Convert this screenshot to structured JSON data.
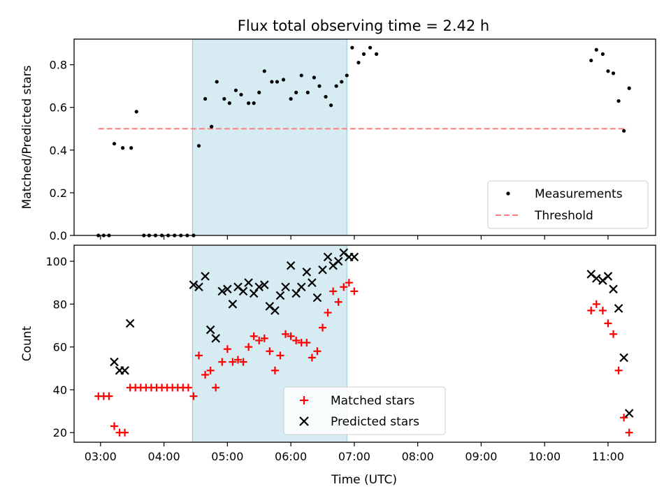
{
  "chart_data": [
    {
      "type": "scatter",
      "title": "Flux total observing time = 2.42 h",
      "xlabel": "",
      "ylabel": "Matched/Predicted stars",
      "xlim": [
        "02:35",
        "11:45"
      ],
      "ylim": [
        0,
        0.92
      ],
      "yticks": [
        0.0,
        0.2,
        0.4,
        0.6,
        0.8
      ],
      "ytick_labels": [
        "0.0",
        "0.2",
        "0.4",
        "0.6",
        "0.8"
      ],
      "xticks": [
        "03:00",
        "04:00",
        "05:00",
        "06:00",
        "07:00",
        "08:00",
        "09:00",
        "10:00",
        "11:00"
      ],
      "grid": false,
      "legend_position": "bottom-right",
      "highlight_span": {
        "start": "04:27",
        "end": "06:53",
        "color": "#add8e6"
      },
      "threshold": {
        "name": "Threshold",
        "value": 0.5,
        "x_start": "02:58",
        "x_end": "11:18",
        "color": "#ff7f7f"
      },
      "series": [
        {
          "name": "Measurements",
          "color": "#000000",
          "marker": "dot",
          "points": [
            [
              "02:58",
              0
            ],
            [
              "03:03",
              0
            ],
            [
              "03:08",
              0
            ],
            [
              "03:13",
              0.43
            ],
            [
              "03:21",
              0.41
            ],
            [
              "03:29",
              0.41
            ],
            [
              "03:34",
              0.58
            ],
            [
              "03:41",
              0
            ],
            [
              "03:46",
              0
            ],
            [
              "03:52",
              0
            ],
            [
              "03:58",
              0
            ],
            [
              "04:04",
              0
            ],
            [
              "04:10",
              0
            ],
            [
              "04:16",
              0
            ],
            [
              "04:22",
              0
            ],
            [
              "04:28",
              0
            ],
            [
              "04:33",
              0.42
            ],
            [
              "04:39",
              0.64
            ],
            [
              "04:45",
              0.51
            ],
            [
              "04:50",
              0.72
            ],
            [
              "04:57",
              0.64
            ],
            [
              "05:02",
              0.62
            ],
            [
              "05:08",
              0.68
            ],
            [
              "05:13",
              0.66
            ],
            [
              "05:20",
              0.62
            ],
            [
              "05:25",
              0.62
            ],
            [
              "05:30",
              0.67
            ],
            [
              "05:35",
              0.77
            ],
            [
              "05:42",
              0.72
            ],
            [
              "05:47",
              0.72
            ],
            [
              "05:53",
              0.73
            ],
            [
              "06:00",
              0.64
            ],
            [
              "06:05",
              0.67
            ],
            [
              "06:10",
              0.75
            ],
            [
              "06:16",
              0.67
            ],
            [
              "06:22",
              0.74
            ],
            [
              "06:27",
              0.7
            ],
            [
              "06:33",
              0.65
            ],
            [
              "06:38",
              0.61
            ],
            [
              "06:43",
              0.7
            ],
            [
              "06:48",
              0.72
            ],
            [
              "06:53",
              0.75
            ],
            [
              "06:58",
              0.88
            ],
            [
              "07:04",
              0.81
            ],
            [
              "07:09",
              0.85
            ],
            [
              "07:15",
              0.88
            ],
            [
              "07:21",
              0.85
            ],
            [
              "10:44",
              0.82
            ],
            [
              "10:49",
              0.87
            ],
            [
              "10:55",
              0.85
            ],
            [
              "11:00",
              0.77
            ],
            [
              "11:05",
              0.76
            ],
            [
              "11:10",
              0.63
            ],
            [
              "11:15",
              0.49
            ],
            [
              "11:20",
              0.69
            ]
          ]
        }
      ]
    },
    {
      "type": "scatter",
      "title": "",
      "xlabel": "Time (UTC)",
      "ylabel": "Count",
      "xlim": [
        "02:35",
        "11:45"
      ],
      "ylim": [
        15.5,
        107.5
      ],
      "yticks": [
        20,
        40,
        60,
        80,
        100
      ],
      "ytick_labels": [
        "20",
        "40",
        "60",
        "80",
        "100"
      ],
      "xticks": [
        "03:00",
        "04:00",
        "05:00",
        "06:00",
        "07:00",
        "08:00",
        "09:00",
        "10:00",
        "11:00"
      ],
      "xtick_labels": [
        "03:00",
        "04:00",
        "05:00",
        "06:00",
        "07:00",
        "08:00",
        "09:00",
        "10:00",
        "11:00"
      ],
      "grid": false,
      "legend_position": "bottom-center",
      "highlight_span": {
        "start": "04:27",
        "end": "06:53",
        "color": "#add8e6"
      },
      "series": [
        {
          "name": "Matched stars",
          "color": "#ff0000",
          "marker": "plus",
          "points": [
            [
              "02:58",
              37
            ],
            [
              "03:03",
              37
            ],
            [
              "03:08",
              37
            ],
            [
              "03:13",
              23
            ],
            [
              "03:18",
              20
            ],
            [
              "03:23",
              20
            ],
            [
              "03:28",
              41
            ],
            [
              "03:33",
              41
            ],
            [
              "03:38",
              41
            ],
            [
              "03:43",
              41
            ],
            [
              "03:48",
              41
            ],
            [
              "03:53",
              41
            ],
            [
              "03:58",
              41
            ],
            [
              "04:03",
              41
            ],
            [
              "04:08",
              41
            ],
            [
              "04:13",
              41
            ],
            [
              "04:18",
              41
            ],
            [
              "04:23",
              41
            ],
            [
              "04:28",
              37
            ],
            [
              "04:33",
              56
            ],
            [
              "04:39",
              47
            ],
            [
              "04:44",
              49
            ],
            [
              "04:49",
              41
            ],
            [
              "04:55",
              53
            ],
            [
              "05:00",
              59
            ],
            [
              "05:05",
              53
            ],
            [
              "05:10",
              54
            ],
            [
              "05:15",
              53
            ],
            [
              "05:20",
              60
            ],
            [
              "05:25",
              65
            ],
            [
              "05:30",
              63
            ],
            [
              "05:35",
              64
            ],
            [
              "05:40",
              58
            ],
            [
              "05:45",
              49
            ],
            [
              "05:50",
              56
            ],
            [
              "05:55",
              66
            ],
            [
              "06:00",
              65
            ],
            [
              "06:05",
              63
            ],
            [
              "06:10",
              62
            ],
            [
              "06:15",
              62
            ],
            [
              "06:20",
              55
            ],
            [
              "06:25",
              58
            ],
            [
              "06:30",
              69
            ],
            [
              "06:35",
              76
            ],
            [
              "06:40",
              86
            ],
            [
              "06:45",
              81
            ],
            [
              "06:50",
              88
            ],
            [
              "06:55",
              90
            ],
            [
              "07:00",
              86
            ],
            [
              "10:44",
              77
            ],
            [
              "10:49",
              80
            ],
            [
              "10:55",
              77
            ],
            [
              "11:00",
              71
            ],
            [
              "11:05",
              66
            ],
            [
              "11:10",
              49
            ],
            [
              "11:15",
              27
            ],
            [
              "11:20",
              20
            ]
          ]
        },
        {
          "name": "Predicted stars",
          "color": "#000000",
          "marker": "cross",
          "points": [
            [
              "03:13",
              53
            ],
            [
              "03:18",
              49
            ],
            [
              "03:23",
              49
            ],
            [
              "03:28",
              71
            ],
            [
              "04:28",
              89
            ],
            [
              "04:33",
              88
            ],
            [
              "04:39",
              93
            ],
            [
              "04:44",
              68
            ],
            [
              "04:49",
              64
            ],
            [
              "04:55",
              86
            ],
            [
              "05:00",
              87
            ],
            [
              "05:05",
              80
            ],
            [
              "05:10",
              88
            ],
            [
              "05:15",
              86
            ],
            [
              "05:20",
              90
            ],
            [
              "05:25",
              85
            ],
            [
              "05:30",
              88
            ],
            [
              "05:35",
              89
            ],
            [
              "05:40",
              79
            ],
            [
              "05:45",
              77
            ],
            [
              "05:50",
              84
            ],
            [
              "05:55",
              88
            ],
            [
              "06:00",
              98
            ],
            [
              "06:05",
              85
            ],
            [
              "06:10",
              88
            ],
            [
              "06:15",
              95
            ],
            [
              "06:20",
              90
            ],
            [
              "06:25",
              83
            ],
            [
              "06:30",
              96
            ],
            [
              "06:35",
              102
            ],
            [
              "06:40",
              98
            ],
            [
              "06:45",
              100
            ],
            [
              "06:50",
              104
            ],
            [
              "06:55",
              102
            ],
            [
              "07:00",
              102
            ],
            [
              "10:44",
              94
            ],
            [
              "10:49",
              92
            ],
            [
              "10:55",
              91
            ],
            [
              "11:00",
              93
            ],
            [
              "11:05",
              87
            ],
            [
              "11:10",
              78
            ],
            [
              "11:15",
              55
            ],
            [
              "11:20",
              29
            ]
          ]
        }
      ]
    }
  ]
}
